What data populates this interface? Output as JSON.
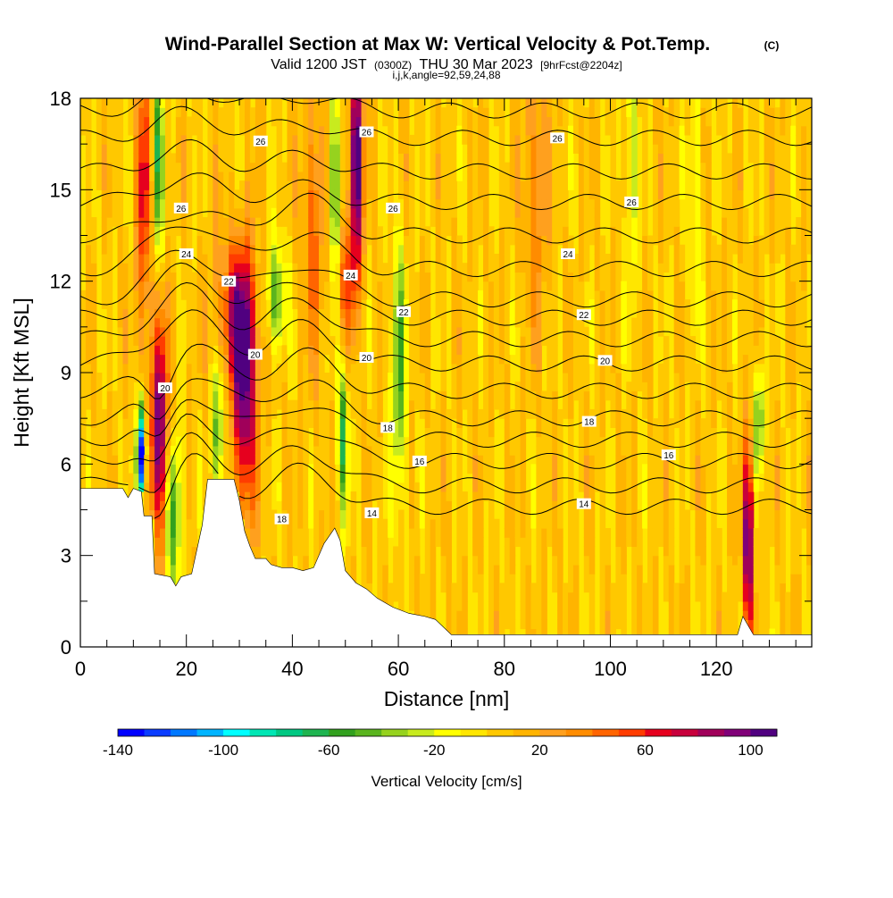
{
  "chart_data": {
    "type": "heatmap",
    "title": "Wind-Parallel Section at Max W: Vertical Velocity & Pot.Temp.",
    "title_mark": "(C)",
    "subtitle_parts": [
      "Valid 1200 JST",
      "(0300Z)",
      "THU 30 Mar 2023",
      "[9hrFcst@2204z]"
    ],
    "subtitle2": "i,j,k,angle=92,59,24,88",
    "xlabel": "Distance [nm]",
    "ylabel": "Height [Kft MSL]",
    "xlim": [
      0,
      138
    ],
    "ylim": [
      0,
      18
    ],
    "x_ticks": [
      0,
      20,
      40,
      60,
      80,
      100,
      120
    ],
    "y_ticks": [
      0,
      3,
      6,
      9,
      12,
      15,
      18
    ],
    "colorbar": {
      "title": "Vertical Velocity [cm/s]",
      "range": [
        -140,
        110
      ],
      "labels": [
        -140,
        -100,
        -60,
        -20,
        20,
        60,
        100
      ],
      "colors": [
        "#0000ff",
        "#0a3cff",
        "#0078ff",
        "#00b4ff",
        "#00ffff",
        "#00e6b4",
        "#00c882",
        "#1eb450",
        "#32a01e",
        "#5ab41e",
        "#96d21e",
        "#c8eb1e",
        "#ffff00",
        "#ffe600",
        "#ffc800",
        "#ffb400",
        "#ffa01e",
        "#ff8c00",
        "#ff6400",
        "#ff3c00",
        "#e6001e",
        "#c8003c",
        "#a0005a",
        "#800078",
        "#500080"
      ]
    },
    "contour_labels": [
      {
        "value": "26",
        "x": 34,
        "y": 16.6
      },
      {
        "value": "26",
        "x": 54,
        "y": 16.9
      },
      {
        "value": "26",
        "x": 90,
        "y": 16.7
      },
      {
        "value": "26",
        "x": 19,
        "y": 14.4
      },
      {
        "value": "26",
        "x": 59,
        "y": 14.4
      },
      {
        "value": "26",
        "x": 104,
        "y": 14.6
      },
      {
        "value": "24",
        "x": 20,
        "y": 12.9
      },
      {
        "value": "24",
        "x": 51,
        "y": 12.2
      },
      {
        "value": "24",
        "x": 92,
        "y": 12.9
      },
      {
        "value": "22",
        "x": 28,
        "y": 12.0
      },
      {
        "value": "22",
        "x": 61,
        "y": 11.0
      },
      {
        "value": "22",
        "x": 95,
        "y": 10.9
      },
      {
        "value": "20",
        "x": 16,
        "y": 8.5
      },
      {
        "value": "20",
        "x": 33,
        "y": 9.6
      },
      {
        "value": "20",
        "x": 54,
        "y": 9.5
      },
      {
        "value": "20",
        "x": 99,
        "y": 9.4
      },
      {
        "value": "18",
        "x": 58,
        "y": 7.2
      },
      {
        "value": "18",
        "x": 96,
        "y": 7.4
      },
      {
        "value": "18",
        "x": 38,
        "y": 4.2
      },
      {
        "value": "16",
        "x": 64,
        "y": 6.1
      },
      {
        "value": "16",
        "x": 111,
        "y": 6.3
      },
      {
        "value": "14",
        "x": 55,
        "y": 4.4
      },
      {
        "value": "14",
        "x": 95,
        "y": 4.7
      }
    ]
  }
}
